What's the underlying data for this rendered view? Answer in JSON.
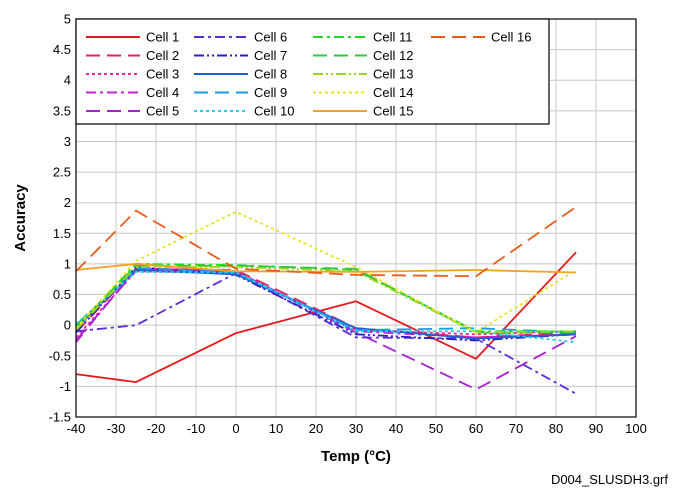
{
  "chart_data": {
    "type": "line",
    "xlabel": "Temp (°C)",
    "ylabel": "Accuracy",
    "xlim": [
      -40,
      100
    ],
    "ylim": [
      -1.5,
      5
    ],
    "xticks": [
      -40,
      -30,
      -20,
      -10,
      0,
      10,
      20,
      30,
      40,
      50,
      60,
      70,
      80,
      90,
      100
    ],
    "yticks": [
      -1.5,
      -1,
      -0.5,
      0,
      0.5,
      1,
      1.5,
      2,
      2.5,
      3,
      3.5,
      4,
      4.5,
      5
    ],
    "xtick_labels": [
      "-40",
      "-30",
      "-20",
      "-10",
      "0",
      "10",
      "20",
      "30",
      "40",
      "50",
      "60",
      "70",
      "80",
      "90",
      "100"
    ],
    "ytick_labels": [
      "-1.5",
      "-1",
      "-0.5",
      "0",
      "0.5",
      "1",
      "1.5",
      "2",
      "2.5",
      "3",
      "3.5",
      "4",
      "4.5",
      "5"
    ],
    "grid": true,
    "legend_position": "top-left",
    "x": [
      -40,
      -25,
      0,
      30,
      60,
      85
    ],
    "series": [
      {
        "name": "Cell 1",
        "color": "#e41a1c",
        "dash": "solid",
        "values": [
          -0.8,
          -0.93,
          -0.13,
          0.39,
          -0.55,
          1.19
        ]
      },
      {
        "name": "Cell 2",
        "color": "#e8205e",
        "dash": "long-dash",
        "values": [
          -0.12,
          0.92,
          0.9,
          -0.05,
          -0.2,
          -0.12
        ]
      },
      {
        "name": "Cell 3",
        "color": "#e52a8f",
        "dash": "dot",
        "values": [
          -0.2,
          0.88,
          0.85,
          -0.08,
          -0.15,
          -0.1
        ]
      },
      {
        "name": "Cell 4",
        "color": "#c71fd6",
        "dash": "dash-dot",
        "values": [
          -0.28,
          0.93,
          0.88,
          -0.1,
          -0.2,
          -0.15
        ]
      },
      {
        "name": "Cell 5",
        "color": "#a821d4",
        "dash": "long-dash",
        "values": [
          -0.25,
          0.9,
          0.87,
          -0.12,
          -1.05,
          -0.18
        ]
      },
      {
        "name": "Cell 6",
        "color": "#5b2bd6",
        "dash": "dash-dot",
        "values": [
          -0.1,
          0.0,
          0.85,
          -0.2,
          -0.22,
          -1.12
        ]
      },
      {
        "name": "Cell 7",
        "color": "#2a1fc7",
        "dash": "dash-dot-dot",
        "values": [
          -0.12,
          0.95,
          0.82,
          -0.15,
          -0.25,
          -0.15
        ]
      },
      {
        "name": "Cell 8",
        "color": "#1e5fd6",
        "dash": "solid",
        "values": [
          -0.05,
          0.9,
          0.83,
          -0.05,
          -0.22,
          -0.15
        ]
      },
      {
        "name": "Cell 9",
        "color": "#1a9be6",
        "dash": "long-dash",
        "values": [
          0.0,
          0.93,
          0.86,
          -0.08,
          -0.05,
          -0.12
        ]
      },
      {
        "name": "Cell 10",
        "color": "#1ad2ec",
        "dash": "dot",
        "values": [
          0.02,
          0.87,
          0.86,
          -0.1,
          -0.1,
          -0.28
        ]
      },
      {
        "name": "Cell 11",
        "color": "#22d62a",
        "dash": "dash-dot",
        "values": [
          -0.05,
          1.0,
          0.98,
          0.9,
          -0.1,
          -0.1
        ]
      },
      {
        "name": "Cell 12",
        "color": "#2cc73c",
        "dash": "long-dash",
        "values": [
          -0.02,
          0.97,
          0.97,
          0.92,
          -0.12,
          -0.12
        ]
      },
      {
        "name": "Cell 13",
        "color": "#9ad61e",
        "dash": "dash-dot-dot",
        "values": [
          -0.08,
          0.95,
          0.95,
          0.88,
          -0.12,
          -0.1
        ]
      },
      {
        "name": "Cell 14",
        "color": "#e6e61e",
        "dash": "dot",
        "values": [
          -0.05,
          1.05,
          1.85,
          0.95,
          -0.12,
          0.9
        ]
      },
      {
        "name": "Cell 15",
        "color": "#f5a21e",
        "dash": "solid",
        "values": [
          0.9,
          1.0,
          0.88,
          0.87,
          0.9,
          0.86
        ]
      },
      {
        "name": "Cell 16",
        "color": "#ea5b1e",
        "dash": "long-dash",
        "values": [
          0.88,
          1.87,
          0.92,
          0.82,
          0.8,
          1.93
        ]
      }
    ]
  },
  "footnote": "D004_SLUSDH3.grf"
}
